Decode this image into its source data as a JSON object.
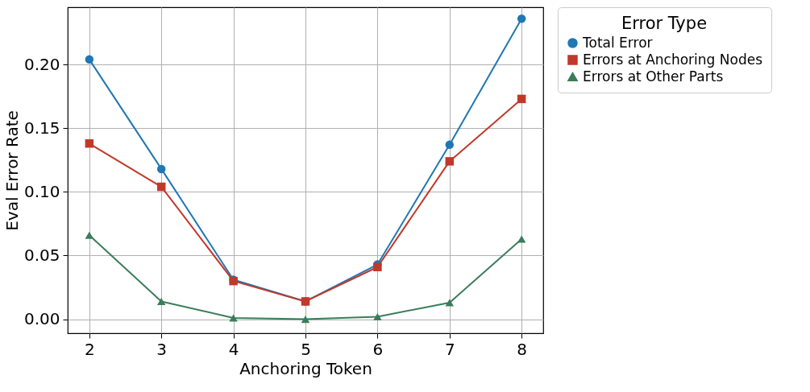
{
  "chart_data": {
    "type": "line",
    "xlabel": "Anchoring Token",
    "ylabel": "Eval Error Rate",
    "legend_title": "Error Type",
    "legend": "right",
    "grid": true,
    "line_style": "solid",
    "x": [
      2,
      3,
      4,
      5,
      6,
      7,
      8
    ],
    "xlim": [
      1.7,
      8.3
    ],
    "xticks": [
      2,
      3,
      4,
      5,
      6,
      7,
      8
    ],
    "ylim": [
      -0.011,
      0.245
    ],
    "yticks": [
      {
        "value": 0,
        "label": "0.00"
      },
      {
        "value": 0.05,
        "label": "0.05"
      },
      {
        "value": 0.1,
        "label": "0.10"
      },
      {
        "value": 0.15,
        "label": "0.15"
      },
      {
        "value": 0.2,
        "label": "0.20"
      }
    ],
    "series": [
      {
        "name": "Total Error",
        "color": "#1f77b4",
        "marker": "circle",
        "values": [
          0.204,
          0.118,
          0.031,
          0.014,
          0.043,
          0.137,
          0.236
        ]
      },
      {
        "name": "Errors at Anchoring Nodes",
        "color": "#c0392b",
        "marker": "square",
        "values": [
          0.138,
          0.104,
          0.03,
          0.014,
          0.041,
          0.124,
          0.173
        ]
      },
      {
        "name": "Errors at Other Parts",
        "color": "#3a7d5a",
        "marker": "triangle",
        "values": [
          0.066,
          0.014,
          0.001,
          0.0,
          0.002,
          0.013,
          0.063
        ]
      }
    ]
  }
}
